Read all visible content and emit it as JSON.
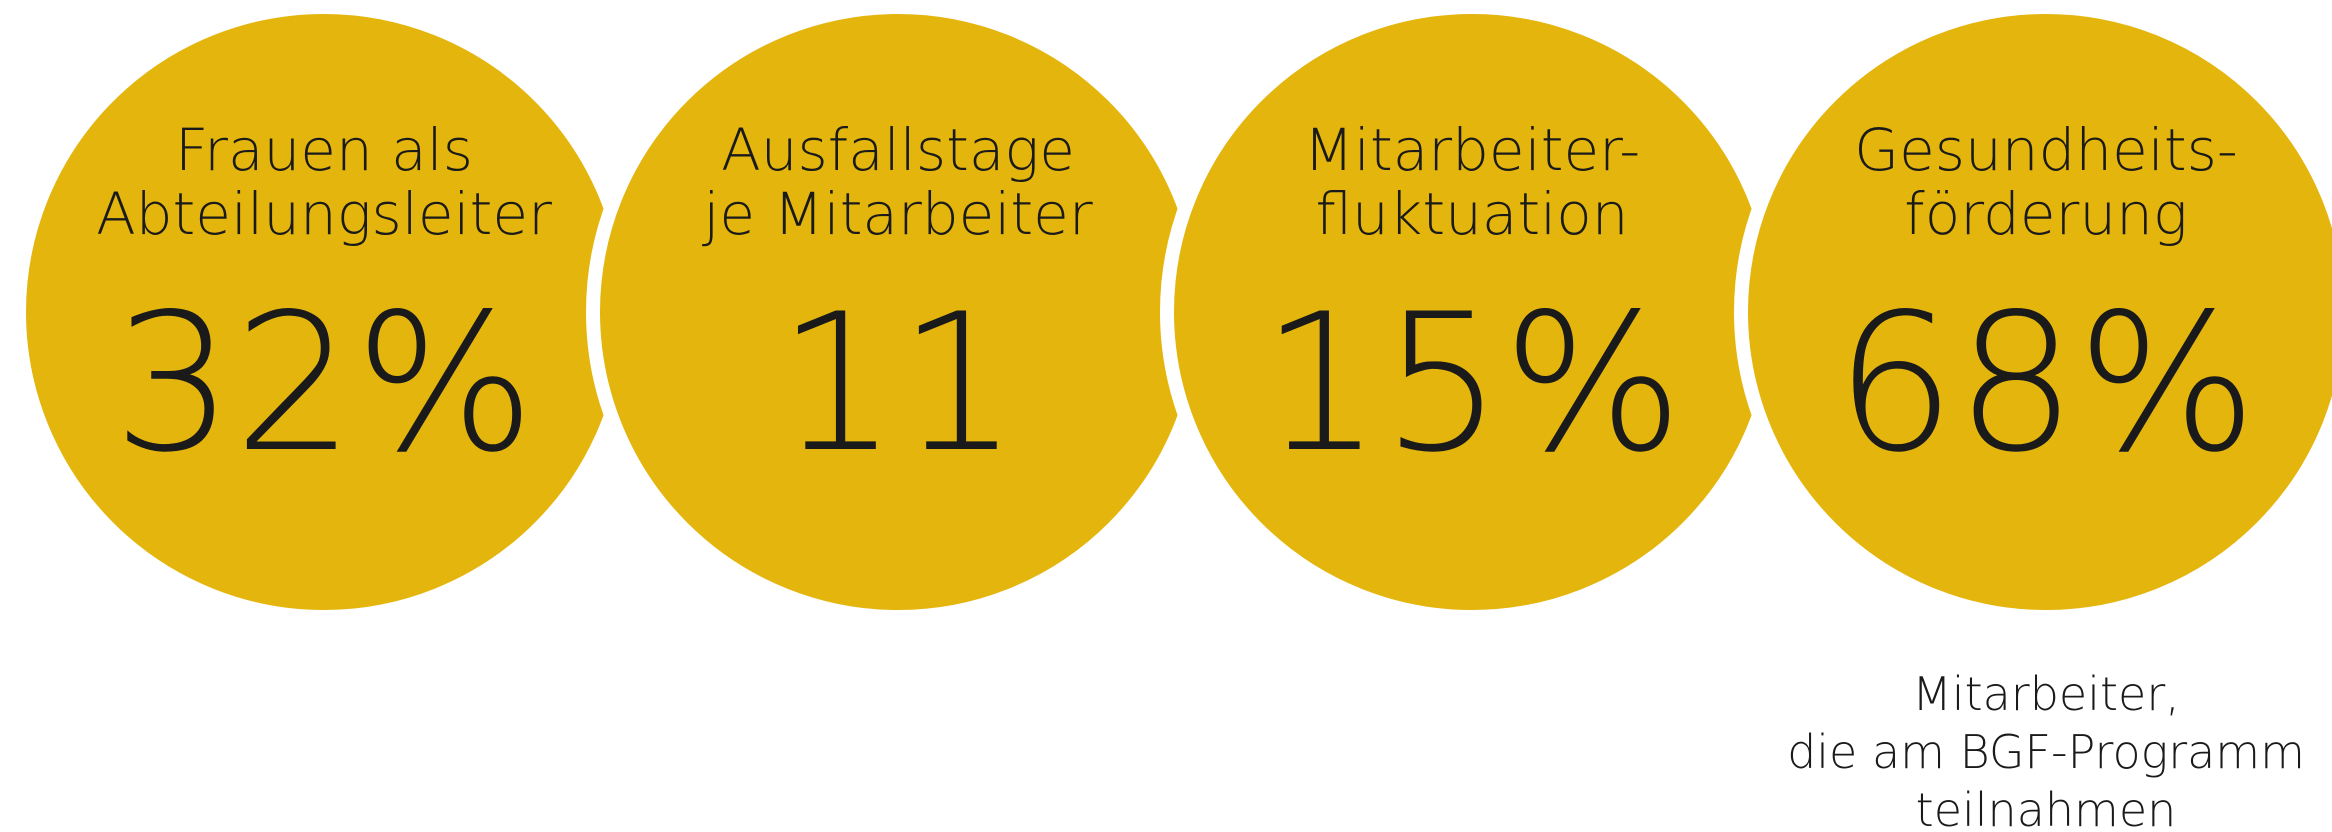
{
  "items": [
    {
      "title": [
        "Frauen als",
        "Abteilungsleiter"
      ],
      "value": "32%"
    },
    {
      "title": [
        "Ausfallstage",
        "je Mitarbeiter"
      ],
      "value": "11"
    },
    {
      "title": [
        "Mitarbeiter-",
        "fluktuation"
      ],
      "value": "15%"
    },
    {
      "title": [
        "Gesundheits-",
        "förderung"
      ],
      "value": "68%"
    }
  ],
  "caption": [
    "Mitarbeiter,",
    "die am BGF-Programm",
    "teilnahmen"
  ]
}
